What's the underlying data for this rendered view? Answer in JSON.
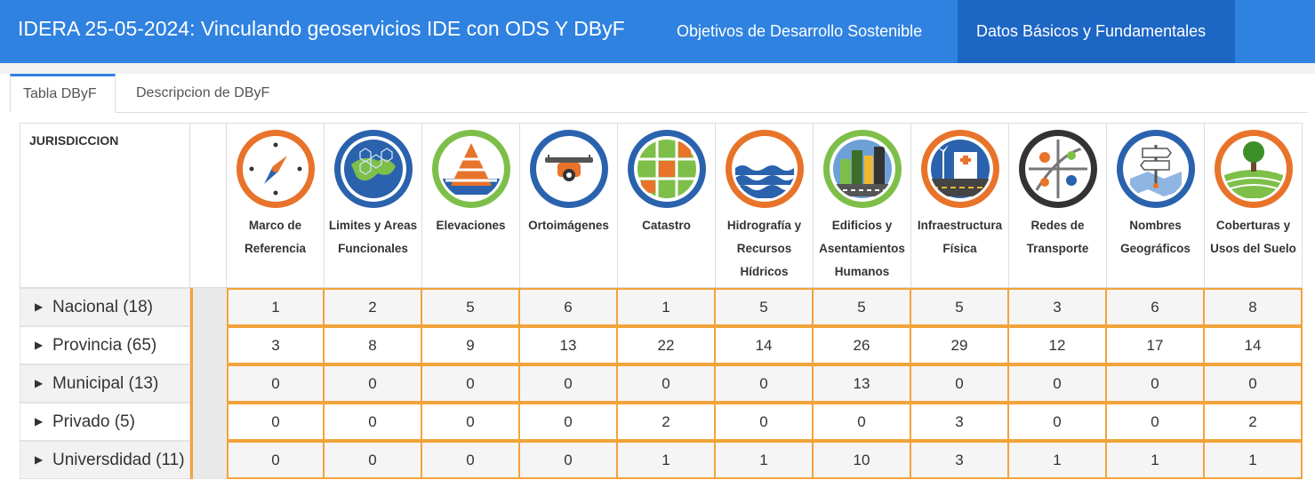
{
  "header": {
    "title": "IDERA 25-05-2024: Vinculando geoservicios IDE con ODS Y DByF",
    "nav": [
      "Objetivos de Desarrollo Sostenible",
      "Datos Básicos y Fundamentales"
    ],
    "active_nav": "Datos Básicos y Fundamentales",
    "colors": {
      "bar": "#2f82e0",
      "active": "#1c66c4"
    }
  },
  "tabs": [
    "Tabla DByF",
    "Descripcion de DByF"
  ],
  "table": {
    "jurisdiction_header": "JURISDICCION",
    "columns": [
      {
        "label": "Marco de Referencia",
        "icon": "compass-icon"
      },
      {
        "label": "Limites y Areas Funcionales",
        "icon": "boundaries-map-icon"
      },
      {
        "label": "Elevaciones",
        "icon": "elevation-cone-icon"
      },
      {
        "label": "Ortoimágenes",
        "icon": "drone-icon"
      },
      {
        "label": "Catastro",
        "icon": "cadastre-parcels-icon"
      },
      {
        "label": "Hidrografía y Recursos Hídricos",
        "icon": "water-waves-icon"
      },
      {
        "label": "Edificios y Asentamientos Humanos",
        "icon": "city-buildings-icon"
      },
      {
        "label": "Infraestructura Física",
        "icon": "infrastructure-icon"
      },
      {
        "label": "Redes de Transporte",
        "icon": "transport-network-icon"
      },
      {
        "label": "Nombres Geográficos",
        "icon": "signpost-icon"
      },
      {
        "label": "Coberturas y Usos del Suelo",
        "icon": "land-cover-tree-icon"
      }
    ],
    "rows": [
      {
        "label": "Nacional (18)",
        "values": [
          "1",
          "2",
          "5",
          "6",
          "1",
          "5",
          "5",
          "5",
          "3",
          "6",
          "8"
        ]
      },
      {
        "label": "Provincia (65)",
        "values": [
          "3",
          "8",
          "9",
          "13",
          "22",
          "14",
          "26",
          "29",
          "12",
          "17",
          "14"
        ]
      },
      {
        "label": "Municipal (13)",
        "values": [
          "0",
          "0",
          "0",
          "0",
          "0",
          "0",
          "13",
          "0",
          "0",
          "0",
          "0"
        ]
      },
      {
        "label": "Privado (5)",
        "values": [
          "0",
          "0",
          "0",
          "0",
          "2",
          "0",
          "0",
          "3",
          "0",
          "0",
          "2"
        ]
      },
      {
        "label": "Universdidad (11)",
        "values": [
          "0",
          "0",
          "0",
          "0",
          "1",
          "1",
          "10",
          "3",
          "1",
          "1",
          "1"
        ]
      }
    ],
    "colors": {
      "accent_border": "#f2a33a",
      "ring_orange": "#e8732a",
      "ring_blue": "#2a62ad",
      "ring_green": "#7ebf4a"
    }
  }
}
